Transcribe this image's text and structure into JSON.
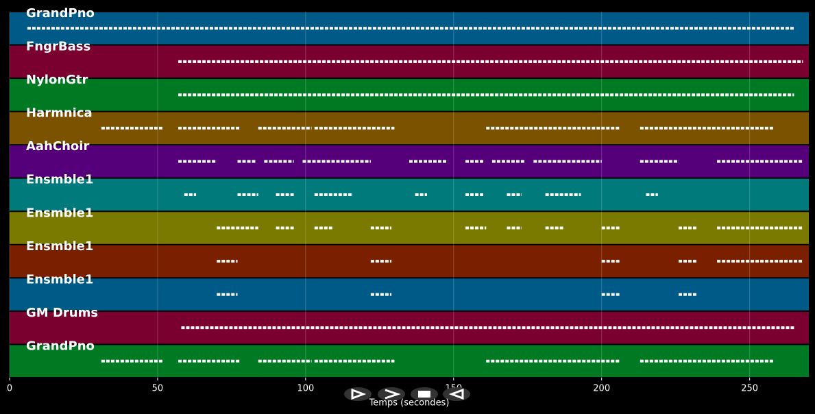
{
  "chart_data": {
    "type": "timeline",
    "xlabel": "Temps (secondes)",
    "xlim": [
      0,
      270
    ],
    "xticks": [
      0,
      50,
      100,
      150,
      200,
      250
    ],
    "grid": true,
    "tracks": [
      {
        "name": "GrandPno",
        "color": "#005a87",
        "notes": [
          [
            6,
            265
          ]
        ]
      },
      {
        "name": "FngrBass",
        "color": "#7a0030",
        "notes": [
          [
            57,
            268
          ]
        ]
      },
      {
        "name": "NylonGtr",
        "color": "#007a22",
        "notes": [
          [
            57,
            265
          ]
        ]
      },
      {
        "name": "Harmnica",
        "color": "#7a5200",
        "notes": [
          [
            31,
            52
          ],
          [
            57,
            78
          ],
          [
            84,
            102
          ],
          [
            103,
            130
          ],
          [
            161,
            206
          ],
          [
            213,
            258
          ]
        ]
      },
      {
        "name": "AahChoir",
        "color": "#55007a",
        "notes": [
          [
            57,
            70
          ],
          [
            77,
            83
          ],
          [
            86,
            96
          ],
          [
            99,
            122
          ],
          [
            135,
            148
          ],
          [
            154,
            160
          ],
          [
            163,
            174
          ],
          [
            177,
            200
          ],
          [
            213,
            226
          ],
          [
            239,
            268
          ]
        ]
      },
      {
        "name": "Ensmble1",
        "color": "#007a7a",
        "notes": [
          [
            59,
            63
          ],
          [
            77,
            84
          ],
          [
            90,
            96
          ],
          [
            103,
            116
          ],
          [
            137,
            141
          ],
          [
            154,
            160
          ],
          [
            168,
            173
          ],
          [
            181,
            193
          ],
          [
            215,
            219
          ]
        ]
      },
      {
        "name": "Ensmble1",
        "color": "#7a7a00",
        "notes": [
          [
            70,
            84
          ],
          [
            90,
            96
          ],
          [
            103,
            109
          ],
          [
            122,
            129
          ],
          [
            154,
            161
          ],
          [
            168,
            173
          ],
          [
            181,
            187
          ],
          [
            200,
            206
          ],
          [
            226,
            232
          ],
          [
            239,
            268
          ]
        ]
      },
      {
        "name": "Ensmble1",
        "color": "#7a2000",
        "notes": [
          [
            70,
            77
          ],
          [
            122,
            129
          ],
          [
            200,
            206
          ],
          [
            226,
            232
          ],
          [
            239,
            268
          ]
        ]
      },
      {
        "name": "Ensmble1",
        "color": "#005a87",
        "notes": [
          [
            70,
            77
          ],
          [
            122,
            129
          ],
          [
            200,
            206
          ],
          [
            226,
            232
          ]
        ]
      },
      {
        "name": "GM Drums",
        "color": "#7a0030",
        "notes": [
          [
            58,
            265
          ]
        ]
      },
      {
        "name": "GrandPno",
        "color": "#007a22",
        "notes": [
          [
            31,
            52
          ],
          [
            57,
            78
          ],
          [
            84,
            102
          ],
          [
            103,
            130
          ],
          [
            161,
            206
          ],
          [
            213,
            258
          ]
        ]
      }
    ]
  }
}
